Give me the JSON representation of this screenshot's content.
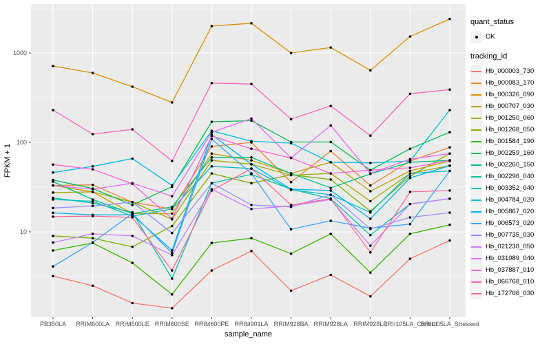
{
  "figure": {
    "panel_background": "#EBEBEB",
    "gridline_color": "#FFFFFF",
    "point_color": "#000000",
    "tick_color": "#333333",
    "tick_label_color": "#4D4D4D",
    "axis_title_color": "#000000",
    "legend_key_background": "#F2F2F2"
  },
  "legend": {
    "quant_status_title": "quant_status",
    "quant_status_value": "OK",
    "tracking_id_title": "tracking_id"
  },
  "axes": {
    "x_title": "sample_name",
    "y_title": "FPKM + 1",
    "y_scale": "log10",
    "y_major_breaks": [
      10,
      100,
      1000
    ],
    "y_minor_breaks": [
      3.162,
      31.62,
      316.2,
      3162
    ],
    "y_tick_labels": [
      "10",
      "100",
      "1000"
    ]
  },
  "chart_data": {
    "type": "line",
    "title": "",
    "xlabel": "sample_name",
    "ylabel": "FPKM + 1",
    "y_scale": "log10",
    "ylim": [
      1.1,
      3500
    ],
    "grid": true,
    "legend_position": "right",
    "point_marker": "black dot on every vertex",
    "categories": [
      "PB350LA",
      "RRIM600LA",
      "RRIM600LE",
      "RRIM600SE",
      "RRIM600PE",
      "RRIM901LA",
      "RRIM928BA",
      "RRIM928LA",
      "RRIM928LE",
      "RRII105LA_Control",
      "RRII105LA_Stressed"
    ],
    "series": [
      {
        "name": "Hb_000003_730",
        "color": "#F8766D",
        "values": [
          3.2,
          2.5,
          1.6,
          1.4,
          3.7,
          6.1,
          2.2,
          3.3,
          1.9,
          5.0,
          8.0
        ]
      },
      {
        "name": "Hb_000083_170",
        "color": "#EA8331",
        "values": [
          33,
          33.5,
          21.5,
          18,
          90,
          100,
          36,
          80,
          33,
          62,
          88
        ]
      },
      {
        "name": "Hb_000326_090",
        "color": "#D89000",
        "values": [
          714,
          598,
          420,
          280,
          2000,
          2150,
          1000,
          1150,
          640,
          1530,
          2400
        ]
      },
      {
        "name": "Hb_000707_030",
        "color": "#C09B00",
        "values": [
          33,
          28,
          16,
          16,
          75,
          63,
          45,
          60,
          28.5,
          48,
          62
        ]
      },
      {
        "name": "Hb_001250_060",
        "color": "#A3A500",
        "values": [
          27.5,
          28,
          21.5,
          13.8,
          63,
          57,
          43,
          45,
          22,
          45,
          55
        ]
      },
      {
        "name": "Hb_001268_050",
        "color": "#7CAE00",
        "values": [
          9,
          8.5,
          6.8,
          11.6,
          45,
          35,
          43.5,
          38.5,
          17,
          42,
          75
        ]
      },
      {
        "name": "Hb_001584_190",
        "color": "#39B600",
        "values": [
          6.2,
          7.5,
          4.5,
          2.0,
          7.5,
          8.5,
          5.7,
          9.5,
          3.5,
          9.5,
          12
        ]
      },
      {
        "name": "Hb_002259_160",
        "color": "#00BB4E",
        "values": [
          38,
          30.5,
          20,
          32,
          170,
          175,
          101,
          101,
          49,
          85,
          130
        ]
      },
      {
        "name": "Hb_002260_150",
        "color": "#00BF7D",
        "values": [
          36.5,
          23,
          16,
          19,
          68,
          68,
          45,
          31,
          44.5,
          60,
          63
        ]
      },
      {
        "name": "Hb_002296_040",
        "color": "#00C1A3",
        "values": [
          24,
          21,
          16.5,
          3.0,
          35,
          44,
          30,
          23.5,
          9.2,
          20.5,
          23.5
        ]
      },
      {
        "name": "Hb_003352_040",
        "color": "#00BFC4",
        "values": [
          23,
          22,
          15,
          18,
          54,
          51,
          29.5,
          26,
          16.5,
          45,
          48
        ]
      },
      {
        "name": "Hb_004784_020",
        "color": "#00BAE0",
        "values": [
          46,
          54,
          66,
          33,
          135,
          103,
          98,
          60,
          59,
          62,
          230
        ]
      },
      {
        "name": "Hb_005867_020",
        "color": "#00B0F6",
        "values": [
          16.3,
          15.5,
          15.5,
          6.2,
          122,
          57,
          30,
          29,
          14,
          40,
          55
        ]
      },
      {
        "name": "Hb_006573_020",
        "color": "#35A2FF",
        "values": [
          4.1,
          7.6,
          16,
          5.8,
          109,
          45,
          10.7,
          13.3,
          11,
          12.2,
          48
        ]
      },
      {
        "name": "Hb_007735_030",
        "color": "#9590FF",
        "values": [
          18.5,
          19.5,
          21.5,
          9.7,
          35,
          20,
          19,
          26,
          10.8,
          14.5,
          16.4
        ]
      },
      {
        "name": "Hb_021238_050",
        "color": "#C77CFF",
        "values": [
          7.6,
          9.5,
          9.0,
          5.5,
          30,
          18,
          19.5,
          23,
          7,
          20.5,
          23.5
        ]
      },
      {
        "name": "Hb_031089_040",
        "color": "#E76BF3",
        "values": [
          33,
          30,
          35,
          25,
          130,
          185,
          67,
          155,
          45,
          65,
          75
        ]
      },
      {
        "name": "Hb_037887_010",
        "color": "#FA62DB",
        "values": [
          56.5,
          50,
          34.5,
          14,
          118,
          85,
          67,
          45,
          49,
          52,
          63
        ]
      },
      {
        "name": "Hb_066768_010",
        "color": "#FF62BC",
        "values": [
          230,
          124,
          140,
          62,
          460,
          450,
          182,
          256,
          119,
          350,
          390
        ]
      },
      {
        "name": "Hb_172706_030",
        "color": "#FF6A98",
        "values": [
          14.8,
          15,
          14.5,
          3.7,
          29,
          51,
          20,
          23.5,
          5.9,
          28,
          29
        ]
      }
    ]
  }
}
